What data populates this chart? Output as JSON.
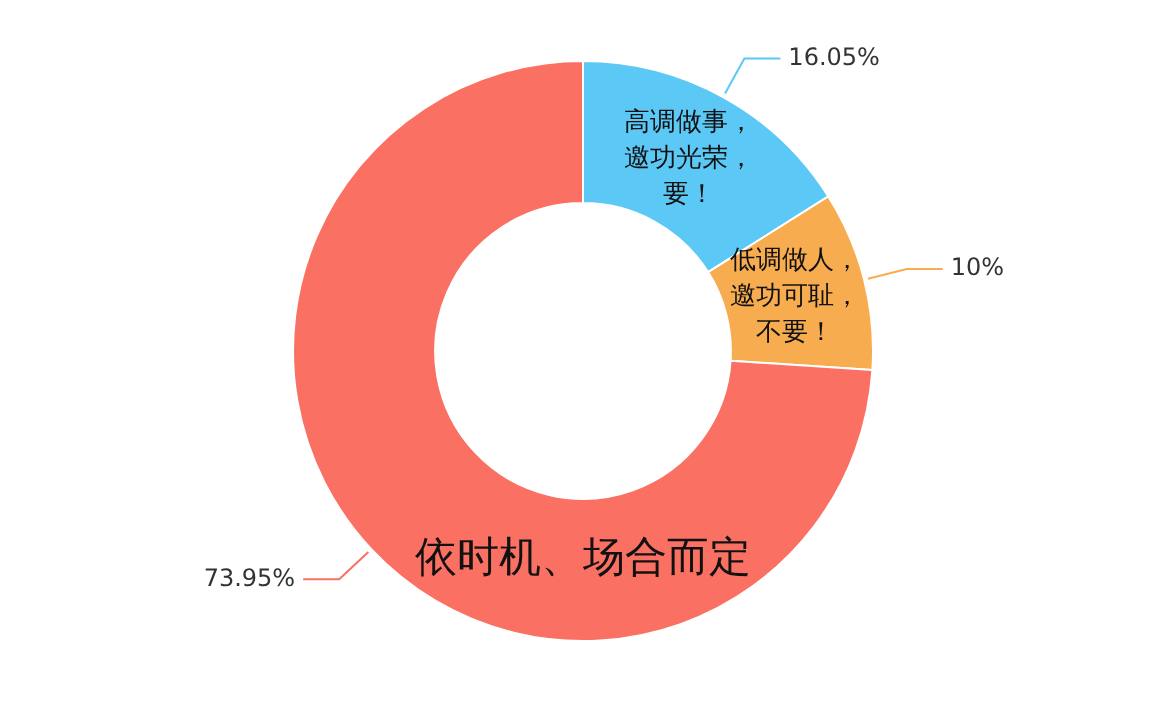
{
  "chart_data": {
    "type": "donut",
    "categories": [
      "高调做事，邀功光荣，要！",
      "低调做人，邀功可耻，不要！",
      "依时机、场合而定"
    ],
    "values": [
      16.05,
      10,
      73.95
    ],
    "value_labels": [
      "16.05%",
      "10%",
      "73.95%"
    ],
    "colors": [
      "#5bc8f5",
      "#f7ad4f",
      "#fa7062"
    ],
    "legend": false
  }
}
